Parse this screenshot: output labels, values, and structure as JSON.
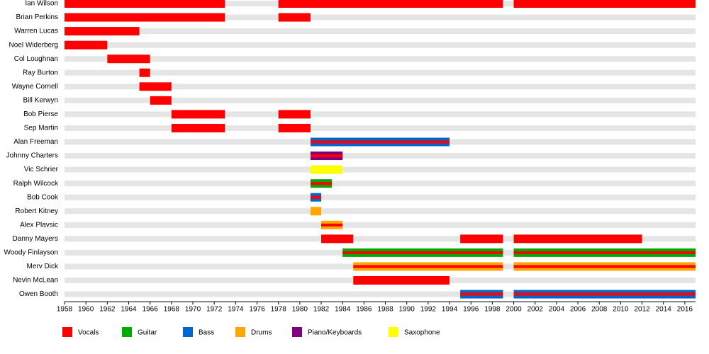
{
  "chart_data": {
    "type": "timeline",
    "xlim": [
      1958,
      2017
    ],
    "xticks": [
      1958,
      1960,
      1962,
      1964,
      1966,
      1968,
      1970,
      1972,
      1974,
      1976,
      1978,
      1980,
      1982,
      1984,
      1986,
      1988,
      1990,
      1992,
      1994,
      1996,
      1998,
      2000,
      2002,
      2004,
      2006,
      2008,
      2010,
      2012,
      2014,
      2016
    ],
    "roles": [
      {
        "name": "Vocals",
        "color": "#ff0000"
      },
      {
        "name": "Guitar",
        "color": "#00aa00"
      },
      {
        "name": "Bass",
        "color": "#0066cc"
      },
      {
        "name": "Drums",
        "color": "#ffa500"
      },
      {
        "name": "Piano/Keyboards",
        "color": "#800080"
      },
      {
        "name": "Saxophone",
        "color": "#ffff00"
      }
    ],
    "members": [
      {
        "name": "Ian Wilson",
        "spans": [
          {
            "start": 1958,
            "end": 1973,
            "roles": [
              "Vocals"
            ]
          },
          {
            "start": 1978,
            "end": 1999,
            "roles": [
              "Vocals"
            ]
          },
          {
            "start": 2000,
            "end": 2017,
            "roles": [
              "Vocals"
            ]
          }
        ]
      },
      {
        "name": "Brian Perkins",
        "spans": [
          {
            "start": 1958,
            "end": 1973,
            "roles": [
              "Vocals"
            ]
          },
          {
            "start": 1978,
            "end": 1981,
            "roles": [
              "Vocals"
            ]
          }
        ]
      },
      {
        "name": "Warren Lucas",
        "spans": [
          {
            "start": 1958,
            "end": 1965,
            "roles": [
              "Vocals"
            ]
          }
        ]
      },
      {
        "name": "Noel Widerberg",
        "spans": [
          {
            "start": 1958,
            "end": 1962,
            "roles": [
              "Vocals"
            ]
          }
        ]
      },
      {
        "name": "Col Loughnan",
        "spans": [
          {
            "start": 1962,
            "end": 1966,
            "roles": [
              "Vocals"
            ]
          }
        ]
      },
      {
        "name": "Ray Burton",
        "spans": [
          {
            "start": 1965,
            "end": 1966,
            "roles": [
              "Vocals"
            ]
          }
        ]
      },
      {
        "name": "Wayne Cornell",
        "spans": [
          {
            "start": 1965,
            "end": 1968,
            "roles": [
              "Vocals"
            ]
          }
        ]
      },
      {
        "name": "Bill Kerwyn",
        "spans": [
          {
            "start": 1966,
            "end": 1968,
            "roles": [
              "Vocals"
            ]
          }
        ]
      },
      {
        "name": "Bob Pierse",
        "spans": [
          {
            "start": 1968,
            "end": 1973,
            "roles": [
              "Vocals"
            ]
          },
          {
            "start": 1978,
            "end": 1981,
            "roles": [
              "Vocals"
            ]
          }
        ]
      },
      {
        "name": "Sep Martin",
        "spans": [
          {
            "start": 1968,
            "end": 1973,
            "roles": [
              "Vocals"
            ]
          },
          {
            "start": 1978,
            "end": 1981,
            "roles": [
              "Vocals"
            ]
          }
        ]
      },
      {
        "name": "Alan Freeman",
        "spans": [
          {
            "start": 1981,
            "end": 1994,
            "roles": [
              "Bass",
              "Vocals"
            ]
          }
        ]
      },
      {
        "name": "Johnny Charters",
        "spans": [
          {
            "start": 1981,
            "end": 1984,
            "roles": [
              "Piano/Keyboards",
              "Vocals"
            ]
          }
        ]
      },
      {
        "name": "Vic Schrier",
        "spans": [
          {
            "start": 1981,
            "end": 1984,
            "roles": [
              "Saxophone"
            ]
          }
        ]
      },
      {
        "name": "Ralph Wilcock",
        "spans": [
          {
            "start": 1981,
            "end": 1983,
            "roles": [
              "Guitar",
              "Vocals"
            ]
          }
        ]
      },
      {
        "name": "Bob Cook",
        "spans": [
          {
            "start": 1981,
            "end": 1982,
            "roles": [
              "Bass",
              "Vocals"
            ]
          }
        ]
      },
      {
        "name": "Robert Kitney",
        "spans": [
          {
            "start": 1981,
            "end": 1982,
            "roles": [
              "Drums"
            ]
          }
        ]
      },
      {
        "name": "Alex Plavsic",
        "spans": [
          {
            "start": 1982,
            "end": 1984,
            "roles": [
              "Drums",
              "Vocals"
            ]
          }
        ]
      },
      {
        "name": "Danny Mayers",
        "spans": [
          {
            "start": 1982,
            "end": 1985,
            "roles": [
              "Vocals"
            ]
          },
          {
            "start": 1995,
            "end": 1999,
            "roles": [
              "Vocals"
            ]
          },
          {
            "start": 2000,
            "end": 2012,
            "roles": [
              "Vocals"
            ]
          }
        ]
      },
      {
        "name": "Woody Finlayson",
        "spans": [
          {
            "start": 1984,
            "end": 1999,
            "roles": [
              "Guitar",
              "Vocals"
            ]
          },
          {
            "start": 2000,
            "end": 2017,
            "roles": [
              "Guitar",
              "Vocals"
            ]
          }
        ]
      },
      {
        "name": "Merv Dick",
        "spans": [
          {
            "start": 1985,
            "end": 1999,
            "roles": [
              "Drums",
              "Vocals"
            ]
          },
          {
            "start": 2000,
            "end": 2017,
            "roles": [
              "Drums",
              "Vocals"
            ]
          }
        ]
      },
      {
        "name": "Nevin McLean",
        "spans": [
          {
            "start": 1985,
            "end": 1994,
            "roles": [
              "Vocals"
            ]
          }
        ]
      },
      {
        "name": "Owen Booth",
        "spans": [
          {
            "start": 1995,
            "end": 1999,
            "roles": [
              "Bass",
              "Vocals"
            ]
          },
          {
            "start": 2000,
            "end": 2017,
            "roles": [
              "Bass",
              "Vocals"
            ]
          }
        ]
      }
    ]
  }
}
